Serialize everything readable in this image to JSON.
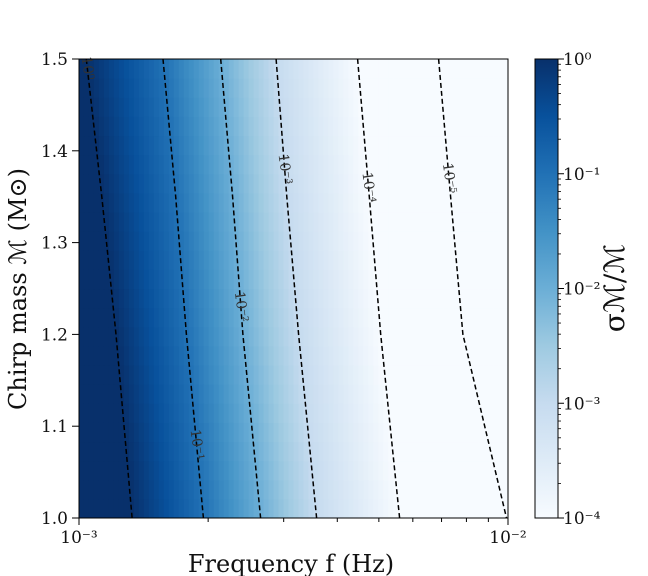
{
  "chart_data": {
    "type": "heatmap",
    "title": "",
    "xlabel": "Frequency f (Hz)",
    "ylabel": "Chirp mass ℳ (M⊙)",
    "colorbar_label": "σℳ/ℳ",
    "x_scale": "log",
    "xlim": [
      0.001,
      0.01
    ],
    "ylim": [
      1.0,
      1.5
    ],
    "x_ticks": [
      {
        "value": 0.001,
        "label": "10⁻³"
      },
      {
        "value": 0.01,
        "label": "10⁻²"
      }
    ],
    "y_ticks": [
      {
        "value": 1.0,
        "label": "1.0"
      },
      {
        "value": 1.1,
        "label": "1.1"
      },
      {
        "value": 1.2,
        "label": "1.2"
      },
      {
        "value": 1.3,
        "label": "1.3"
      },
      {
        "value": 1.4,
        "label": "1.4"
      },
      {
        "value": 1.5,
        "label": "1.5"
      }
    ],
    "colorbar": {
      "scale": "log",
      "range": [
        0.0001,
        1
      ],
      "ticks": [
        {
          "value": 1,
          "label": "10⁰"
        },
        {
          "value": 0.1,
          "label": "10⁻¹"
        },
        {
          "value": 0.01,
          "label": "10⁻²"
        },
        {
          "value": 0.001,
          "label": "10⁻³"
        },
        {
          "value": 0.0001,
          "label": "10⁻⁴"
        }
      ],
      "colormap": "Blues",
      "color_low": "#f7fbff",
      "color_high": "#08306b"
    },
    "contours": [
      {
        "level": 1,
        "label": "10⁰",
        "points": [
          [
            0.00104,
            1.5
          ],
          [
            0.00113,
            1.35
          ],
          [
            0.00122,
            1.2
          ],
          [
            0.00133,
            1.0
          ]
        ]
      },
      {
        "level": 0.1,
        "label": "10⁻¹",
        "points": [
          [
            0.00157,
            1.5
          ],
          [
            0.00168,
            1.35
          ],
          [
            0.00178,
            1.2
          ],
          [
            0.00195,
            1.0
          ]
        ]
      },
      {
        "level": 0.01,
        "label": "10⁻²",
        "points": [
          [
            0.00214,
            1.5
          ],
          [
            0.00228,
            1.35
          ],
          [
            0.00241,
            1.2
          ],
          [
            0.00265,
            1.0
          ]
        ]
      },
      {
        "level": 0.001,
        "label": "10⁻³",
        "points": [
          [
            0.00288,
            1.5
          ],
          [
            0.00305,
            1.35
          ],
          [
            0.00325,
            1.2
          ],
          [
            0.00358,
            1.0
          ]
        ]
      },
      {
        "level": 0.0001,
        "label": "10⁻⁴",
        "points": [
          [
            0.00446,
            1.5
          ],
          [
            0.00475,
            1.35
          ],
          [
            0.00505,
            1.2
          ],
          [
            0.00559,
            1.0
          ]
        ]
      },
      {
        "level": 1e-05,
        "label": "10⁻⁵",
        "points": [
          [
            0.00689,
            1.5
          ],
          [
            0.00735,
            1.35
          ],
          [
            0.00785,
            1.2
          ],
          [
            0.00992,
            1.0
          ]
        ]
      }
    ],
    "contour_style": "dashed",
    "contour_color": "#000000"
  }
}
